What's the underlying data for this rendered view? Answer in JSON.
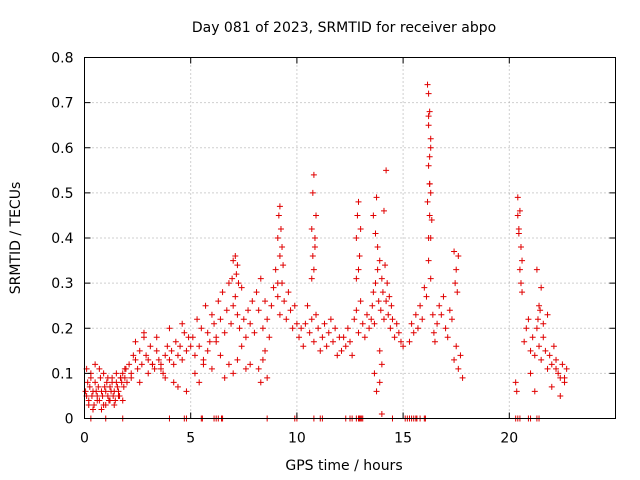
{
  "colors": {
    "series": "#e00000",
    "grid": "#a0a0a0",
    "axis": "#000000"
  },
  "chart_data": {
    "type": "scatter",
    "title": "Day 081 of 2023, SRMTID for receiver abpo",
    "xlabel": "GPS time / hours",
    "ylabel": "SRMTID / TECUs",
    "xlim": [
      0,
      25
    ],
    "ylim": [
      0,
      0.8
    ],
    "xticks": [
      0,
      5,
      10,
      15,
      20
    ],
    "yticks": [
      0,
      0.1,
      0.2,
      0.3,
      0.4,
      0.5,
      0.6,
      0.7,
      0.8
    ],
    "xtick_labels": [
      "0",
      "5",
      "10",
      "15",
      "20"
    ],
    "ytick_labels": [
      "0",
      "0.1",
      "0.2",
      "0.3",
      "0.4",
      "0.5",
      "0.6",
      "0.7",
      "0.8"
    ],
    "grid": true,
    "marker": "+",
    "series": [
      {
        "name": "SRMTID",
        "x": [
          0.05,
          0.1,
          0.15,
          0.2,
          0.25,
          0.3,
          0.35,
          0.4,
          0.45,
          0.5,
          0.55,
          0.6,
          0.65,
          0.7,
          0.75,
          0.8,
          0.85,
          0.9,
          0.95,
          1.0,
          1.05,
          1.1,
          1.15,
          1.2,
          1.25,
          1.3,
          1.35,
          1.4,
          1.45,
          1.5,
          1.55,
          1.6,
          1.65,
          1.7,
          1.75,
          1.8,
          1.85,
          1.9,
          1.95,
          2.0,
          0.1,
          0.2,
          0.3,
          0.4,
          0.5,
          0.6,
          0.7,
          0.8,
          0.9,
          1.0,
          1.1,
          1.2,
          1.3,
          1.4,
          1.5,
          1.6,
          1.7,
          1.8,
          1.9,
          2.1,
          2.2,
          2.3,
          2.4,
          2.5,
          2.6,
          2.7,
          2.8,
          2.9,
          3.0,
          3.1,
          3.2,
          3.3,
          3.4,
          3.5,
          3.6,
          3.7,
          3.8,
          3.9,
          4.0,
          4.1,
          4.2,
          4.3,
          4.4,
          4.5,
          4.6,
          4.7,
          4.8,
          4.9,
          5.0,
          2.2,
          2.4,
          2.6,
          2.8,
          3.0,
          3.2,
          3.4,
          3.6,
          3.8,
          4.0,
          4.2,
          4.4,
          4.6,
          4.8,
          5.1,
          5.2,
          5.3,
          5.4,
          5.5,
          5.6,
          5.7,
          5.8,
          5.9,
          6.0,
          6.1,
          6.2,
          6.3,
          6.4,
          6.5,
          6.6,
          6.7,
          6.8,
          6.9,
          7.0,
          7.1,
          7.2,
          7.3,
          7.4,
          7.5,
          7.6,
          7.7,
          7.8,
          7.9,
          8.0,
          5.2,
          5.4,
          5.6,
          5.8,
          6.0,
          6.2,
          6.4,
          6.6,
          6.8,
          7.0,
          7.2,
          7.4,
          7.6,
          7.8,
          7.1,
          7.15,
          7.2,
          7.25,
          6.95,
          7.0,
          8.1,
          8.2,
          8.3,
          8.4,
          8.5,
          8.6,
          8.7,
          8.8,
          8.9,
          9.0,
          9.1,
          9.2,
          9.3,
          9.4,
          9.5,
          9.6,
          9.7,
          9.8,
          9.9,
          10.0,
          8.2,
          8.3,
          8.4,
          8.5,
          8.6,
          9.1,
          9.15,
          9.2,
          9.25,
          9.3,
          9.35,
          9.2,
          9.1,
          10.1,
          10.2,
          10.3,
          10.4,
          10.5,
          10.6,
          10.7,
          10.8,
          10.9,
          11.0,
          11.1,
          11.2,
          11.3,
          11.4,
          11.5,
          11.6,
          11.7,
          11.8,
          11.9,
          12.0,
          10.7,
          10.75,
          10.8,
          10.85,
          10.9,
          10.8,
          10.85,
          10.75,
          10.7,
          12.1,
          12.2,
          12.3,
          12.4,
          12.5,
          12.6,
          12.7,
          12.8,
          12.9,
          13.0,
          13.1,
          13.2,
          13.3,
          13.4,
          12.8,
          12.85,
          12.9,
          12.95,
          13.0,
          12.9,
          12.8,
          13.5,
          13.55,
          13.6,
          13.65,
          13.7,
          13.75,
          13.8,
          13.85,
          13.9,
          13.95,
          14.0,
          14.05,
          14.1,
          14.15,
          14.2,
          14.25,
          14.3,
          14.35,
          14.4,
          14.45,
          14.5,
          14.6,
          14.7,
          14.8,
          14.9,
          15.0,
          13.6,
          13.7,
          13.8,
          13.9,
          14.0,
          13.65,
          13.75,
          14.1,
          14.2,
          13.9,
          14.0,
          15.3,
          15.4,
          15.5,
          15.6,
          15.7,
          15.8,
          15.9,
          16.0,
          16.1,
          16.15,
          16.2,
          16.25,
          16.3,
          16.35,
          16.4,
          16.45,
          16.5,
          16.6,
          16.7,
          16.8,
          16.9,
          17.0,
          17.1,
          17.2,
          17.3,
          17.4,
          17.5,
          17.6,
          17.7,
          17.8,
          16.15,
          16.2,
          16.25,
          16.3,
          16.2,
          16.25,
          16.3,
          16.2,
          16.25,
          16.3,
          16.2,
          16.3,
          16.25,
          16.2,
          17.4,
          17.5,
          17.45,
          17.55,
          17.6,
          20.3,
          20.35,
          20.4,
          20.45,
          20.5,
          20.55,
          20.6,
          20.4,
          20.5,
          20.6,
          20.45,
          20.55,
          20.7,
          20.8,
          20.9,
          21.0,
          21.1,
          21.2,
          21.3,
          21.4,
          21.5,
          21.6,
          21.7,
          21.8,
          21.9,
          22.0,
          22.1,
          22.2,
          22.3,
          22.4,
          22.5,
          22.6,
          22.7,
          21.0,
          21.2,
          21.4,
          21.6,
          21.8,
          22.0,
          22.2,
          22.4,
          22.6,
          21.3,
          21.5,
          21.45,
          21.35,
          0.3,
          1.0,
          1.8,
          4.0,
          4.7,
          4.8,
          5.5,
          5.55,
          6.1,
          6.2,
          6.3,
          6.45,
          6.5,
          8.6,
          9.9,
          10.0,
          10.8,
          11.1,
          11.2,
          12.3,
          12.5,
          12.6,
          12.8,
          12.9,
          12.95,
          13.0,
          13.05,
          13.1,
          14.5,
          15.1,
          15.2,
          15.3,
          15.4,
          15.5,
          15.6,
          15.65,
          15.8,
          16.0,
          16.05,
          20.3,
          20.4,
          20.5,
          20.9,
          21.0,
          21.3,
          21.4
        ],
        "y": [
          0.06,
          0.05,
          0.08,
          0.04,
          0.07,
          0.09,
          0.05,
          0.06,
          0.03,
          0.08,
          0.06,
          0.05,
          0.07,
          0.04,
          0.09,
          0.06,
          0.05,
          0.03,
          0.07,
          0.06,
          0.08,
          0.05,
          0.04,
          0.07,
          0.06,
          0.09,
          0.05,
          0.06,
          0.04,
          0.08,
          0.07,
          0.06,
          0.05,
          0.09,
          0.08,
          0.1,
          0.07,
          0.09,
          0.11,
          0.08,
          0.11,
          0.03,
          0.1,
          0.02,
          0.12,
          0.04,
          0.11,
          0.02,
          0.1,
          0.03,
          0.09,
          0.04,
          0.08,
          0.03,
          0.1,
          0.05,
          0.09,
          0.04,
          0.11,
          0.12,
          0.1,
          0.14,
          0.13,
          0.11,
          0.15,
          0.12,
          0.18,
          0.14,
          0.13,
          0.16,
          0.12,
          0.11,
          0.15,
          0.13,
          0.12,
          0.1,
          0.14,
          0.16,
          0.13,
          0.15,
          0.12,
          0.17,
          0.14,
          0.16,
          0.13,
          0.19,
          0.15,
          0.18,
          0.16,
          0.09,
          0.17,
          0.08,
          0.19,
          0.1,
          0.12,
          0.18,
          0.11,
          0.09,
          0.2,
          0.08,
          0.07,
          0.21,
          0.06,
          0.18,
          0.14,
          0.22,
          0.16,
          0.2,
          0.13,
          0.25,
          0.19,
          0.17,
          0.23,
          0.21,
          0.18,
          0.26,
          0.22,
          0.28,
          0.19,
          0.24,
          0.3,
          0.21,
          0.25,
          0.27,
          0.23,
          0.2,
          0.29,
          0.22,
          0.18,
          0.24,
          0.21,
          0.26,
          0.19,
          0.1,
          0.08,
          0.12,
          0.15,
          0.11,
          0.17,
          0.14,
          0.09,
          0.12,
          0.1,
          0.13,
          0.16,
          0.11,
          0.12,
          0.36,
          0.32,
          0.34,
          0.3,
          0.31,
          0.35,
          0.28,
          0.24,
          0.31,
          0.2,
          0.26,
          0.22,
          0.18,
          0.25,
          0.29,
          0.33,
          0.27,
          0.23,
          0.3,
          0.26,
          0.22,
          0.28,
          0.24,
          0.2,
          0.25,
          0.21,
          0.11,
          0.08,
          0.13,
          0.15,
          0.09,
          0.4,
          0.45,
          0.36,
          0.42,
          0.38,
          0.34,
          0.47,
          0.3,
          0.18,
          0.2,
          0.16,
          0.21,
          0.25,
          0.19,
          0.22,
          0.17,
          0.23,
          0.2,
          0.15,
          0.18,
          0.21,
          0.16,
          0.19,
          0.22,
          0.17,
          0.2,
          0.14,
          0.18,
          0.42,
          0.5,
          0.54,
          0.38,
          0.45,
          0.33,
          0.4,
          0.36,
          0.31,
          0.15,
          0.18,
          0.16,
          0.2,
          0.17,
          0.14,
          0.22,
          0.24,
          0.19,
          0.26,
          0.21,
          0.18,
          0.23,
          0.2,
          0.4,
          0.45,
          0.48,
          0.36,
          0.42,
          0.33,
          0.31,
          0.22,
          0.25,
          0.28,
          0.21,
          0.3,
          0.49,
          0.33,
          0.26,
          0.35,
          0.24,
          0.31,
          0.28,
          0.22,
          0.34,
          0.26,
          0.3,
          0.23,
          0.27,
          0.2,
          0.25,
          0.22,
          0.18,
          0.21,
          0.19,
          0.17,
          0.16,
          0.45,
          0.41,
          0.38,
          0.08,
          0.12,
          0.1,
          0.06,
          0.46,
          0.55,
          0.15,
          0.01,
          0.17,
          0.21,
          0.19,
          0.23,
          0.2,
          0.25,
          0.22,
          0.29,
          0.27,
          0.48,
          0.4,
          0.52,
          0.6,
          0.44,
          0.23,
          0.19,
          0.17,
          0.21,
          0.25,
          0.23,
          0.27,
          0.2,
          0.18,
          0.24,
          0.22,
          0.13,
          0.16,
          0.11,
          0.14,
          0.09,
          0.74,
          0.72,
          0.68,
          0.62,
          0.56,
          0.52,
          0.5,
          0.65,
          0.45,
          0.4,
          0.35,
          0.31,
          0.58,
          0.67,
          0.37,
          0.33,
          0.3,
          0.28,
          0.36,
          0.08,
          0.06,
          0.45,
          0.41,
          0.33,
          0.38,
          0.28,
          0.49,
          0.46,
          0.35,
          0.42,
          0.3,
          0.17,
          0.2,
          0.22,
          0.15,
          0.18,
          0.14,
          0.2,
          0.16,
          0.13,
          0.18,
          0.15,
          0.11,
          0.14,
          0.12,
          0.16,
          0.13,
          0.1,
          0.09,
          0.12,
          0.08,
          0.11,
          0.1,
          0.06,
          0.25,
          0.21,
          0.23,
          0.07,
          0.11,
          0.05,
          0.09,
          0.33,
          0.29,
          0.24,
          0.22,
          0,
          0,
          0,
          0,
          0,
          0,
          0,
          0,
          0,
          0,
          0,
          0,
          0,
          0,
          0,
          0,
          0,
          0,
          0,
          0,
          0,
          0,
          0,
          0,
          0,
          0,
          0,
          0,
          0,
          0,
          0,
          0,
          0,
          0,
          0,
          0,
          0,
          0,
          0,
          0,
          0,
          0,
          0,
          0,
          0,
          0
        ]
      }
    ]
  }
}
